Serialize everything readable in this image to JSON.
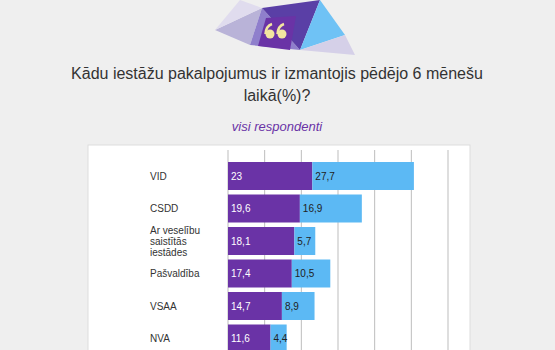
{
  "chart_data": {
    "type": "bar",
    "title": "Kādu iestāžu pakalpojumus ir izmantojis pēdējo 6 mēnešu laikā(%)?",
    "subtitle": "visi respondenti",
    "orientation": "horizontal",
    "stacked": true,
    "data_labels": true,
    "grid": true,
    "tick_labels": false,
    "categories": [
      "VID",
      "CSDD",
      "Ar veselību saistītās iestādes",
      "Pašvaldība",
      "VSAA",
      "NVA"
    ],
    "series": [
      {
        "color": "#6a33a6",
        "values": [
          23,
          19.6,
          18.1,
          17.4,
          14.7,
          11.6
        ],
        "value_labels": [
          "23",
          "19,6",
          "18,1",
          "17,4",
          "14,7",
          "11,6"
        ]
      },
      {
        "color": "#5cb9f4",
        "values": [
          27.7,
          16.9,
          5.7,
          10.5,
          8.9,
          4.4
        ],
        "value_labels": [
          "27,7",
          "16,9",
          "5,7",
          "10,5",
          "8,9",
          "4,4"
        ]
      }
    ],
    "xlim": [
      0,
      60
    ],
    "xticks": [
      0,
      10,
      20,
      30,
      40,
      50,
      60
    ]
  }
}
